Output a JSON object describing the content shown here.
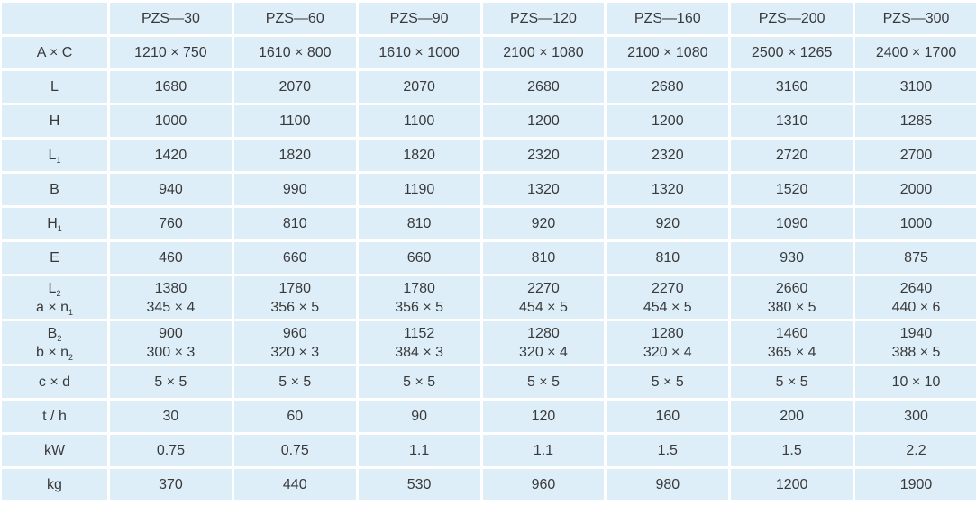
{
  "header": [
    "PZS—30",
    "PZS—60",
    "PZS—90",
    "PZS—120",
    "PZS—160",
    "PZS—200",
    "PZS—300"
  ],
  "rows": [
    {
      "lines": [
        {
          "label": "A × C",
          "sub": ""
        }
      ],
      "values": [
        [
          "1210 × 750"
        ],
        [
          "1610 × 800"
        ],
        [
          "1610 × 1000"
        ],
        [
          "2100 × 1080"
        ],
        [
          "2100 × 1080"
        ],
        [
          "2500 × 1265"
        ],
        [
          "2400 × 1700"
        ]
      ]
    },
    {
      "lines": [
        {
          "label": "L",
          "sub": ""
        }
      ],
      "values": [
        [
          "1680"
        ],
        [
          "2070"
        ],
        [
          "2070"
        ],
        [
          "2680"
        ],
        [
          "2680"
        ],
        [
          "3160"
        ],
        [
          "3100"
        ]
      ]
    },
    {
      "lines": [
        {
          "label": "H",
          "sub": ""
        }
      ],
      "values": [
        [
          "1000"
        ],
        [
          "1100"
        ],
        [
          "1100"
        ],
        [
          "1200"
        ],
        [
          "1200"
        ],
        [
          "1310"
        ],
        [
          "1285"
        ]
      ]
    },
    {
      "lines": [
        {
          "label": "L",
          "sub": "1"
        }
      ],
      "values": [
        [
          "1420"
        ],
        [
          "1820"
        ],
        [
          "1820"
        ],
        [
          "2320"
        ],
        [
          "2320"
        ],
        [
          "2720"
        ],
        [
          "2700"
        ]
      ]
    },
    {
      "lines": [
        {
          "label": "B",
          "sub": ""
        }
      ],
      "values": [
        [
          "940"
        ],
        [
          "990"
        ],
        [
          "1190"
        ],
        [
          "1320"
        ],
        [
          "1320"
        ],
        [
          "1520"
        ],
        [
          "2000"
        ]
      ]
    },
    {
      "lines": [
        {
          "label": "H",
          "sub": "1"
        }
      ],
      "values": [
        [
          "760"
        ],
        [
          "810"
        ],
        [
          "810"
        ],
        [
          "920"
        ],
        [
          "920"
        ],
        [
          "1090"
        ],
        [
          "1000"
        ]
      ]
    },
    {
      "lines": [
        {
          "label": "E",
          "sub": ""
        }
      ],
      "values": [
        [
          "460"
        ],
        [
          "660"
        ],
        [
          "660"
        ],
        [
          "810"
        ],
        [
          "810"
        ],
        [
          "930"
        ],
        [
          "875"
        ]
      ]
    },
    {
      "lines": [
        {
          "label": "L",
          "sub": "2"
        },
        {
          "label": "a × n",
          "sub": "1"
        }
      ],
      "values": [
        [
          "1380",
          "345 × 4"
        ],
        [
          "1780",
          "356 × 5"
        ],
        [
          "1780",
          "356 × 5"
        ],
        [
          "2270",
          "454 × 5"
        ],
        [
          "2270",
          "454 × 5"
        ],
        [
          "2660",
          "380 × 5"
        ],
        [
          "2640",
          "440 × 6"
        ]
      ]
    },
    {
      "lines": [
        {
          "label": "B",
          "sub": "2"
        },
        {
          "label": "b × n",
          "sub": "2"
        }
      ],
      "values": [
        [
          "900",
          "300 × 3"
        ],
        [
          "960",
          "320 × 3"
        ],
        [
          "1152",
          "384 × 3"
        ],
        [
          "1280",
          "320 × 4"
        ],
        [
          "1280",
          "320 × 4"
        ],
        [
          "1460",
          "365 × 4"
        ],
        [
          "1940",
          "388 × 5"
        ]
      ]
    },
    {
      "lines": [
        {
          "label": "c × d",
          "sub": ""
        }
      ],
      "values": [
        [
          "5 × 5"
        ],
        [
          "5 × 5"
        ],
        [
          "5 × 5"
        ],
        [
          "5 × 5"
        ],
        [
          "5 × 5"
        ],
        [
          "5 × 5"
        ],
        [
          "10 × 10"
        ]
      ]
    },
    {
      "lines": [
        {
          "label": "t / h",
          "sub": ""
        }
      ],
      "values": [
        [
          "30"
        ],
        [
          "60"
        ],
        [
          "90"
        ],
        [
          "120"
        ],
        [
          "160"
        ],
        [
          "200"
        ],
        [
          "300"
        ]
      ]
    },
    {
      "lines": [
        {
          "label": "kW",
          "sub": ""
        }
      ],
      "values": [
        [
          "0.75"
        ],
        [
          "0.75"
        ],
        [
          "1.1"
        ],
        [
          "1.1"
        ],
        [
          "1.5"
        ],
        [
          "1.5"
        ],
        [
          "2.2"
        ]
      ]
    },
    {
      "lines": [
        {
          "label": "kg",
          "sub": ""
        }
      ],
      "values": [
        [
          "370"
        ],
        [
          "440"
        ],
        [
          "530"
        ],
        [
          "960"
        ],
        [
          "980"
        ],
        [
          "1200"
        ],
        [
          "1900"
        ]
      ]
    }
  ],
  "colors": {
    "cell_bg": "#ddeef9",
    "grid": "#ffffff",
    "text": "#3a3a3a"
  }
}
